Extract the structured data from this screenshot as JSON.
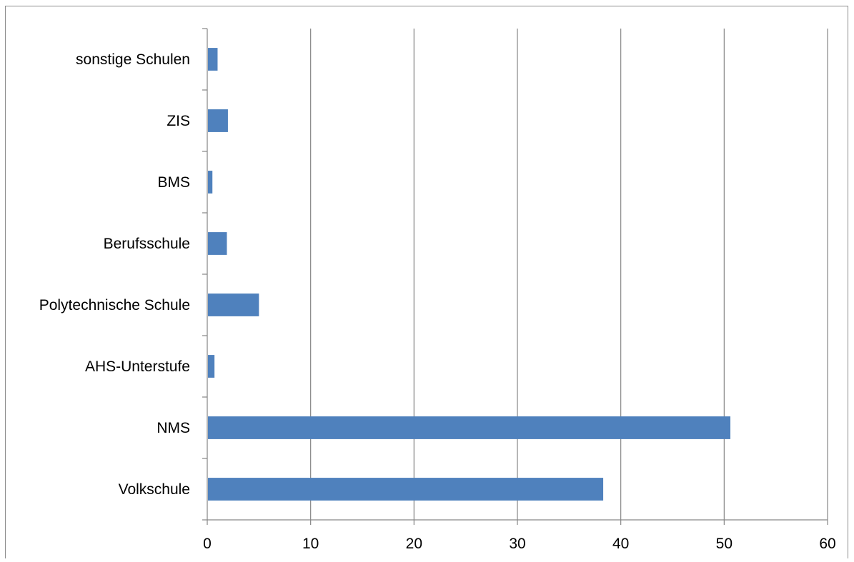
{
  "chart_data": {
    "type": "bar",
    "orientation": "horizontal",
    "categories": [
      "sonstige Schulen",
      "ZIS",
      "BMS",
      "Berufsschule",
      "Polytechnische Schule",
      "AHS-Unterstufe",
      "NMS",
      "Volkschule"
    ],
    "values": [
      1.0,
      2.0,
      0.5,
      1.9,
      5.0,
      0.7,
      50.6,
      38.3
    ],
    "title": "",
    "xlabel": "",
    "ylabel": "",
    "xlim": [
      0,
      60
    ],
    "xticks": [
      0,
      10,
      20,
      30,
      40,
      50,
      60
    ],
    "grid": "vertical",
    "legend": "none",
    "bar_color": "#4f81bd",
    "grid_color": "#868686"
  }
}
